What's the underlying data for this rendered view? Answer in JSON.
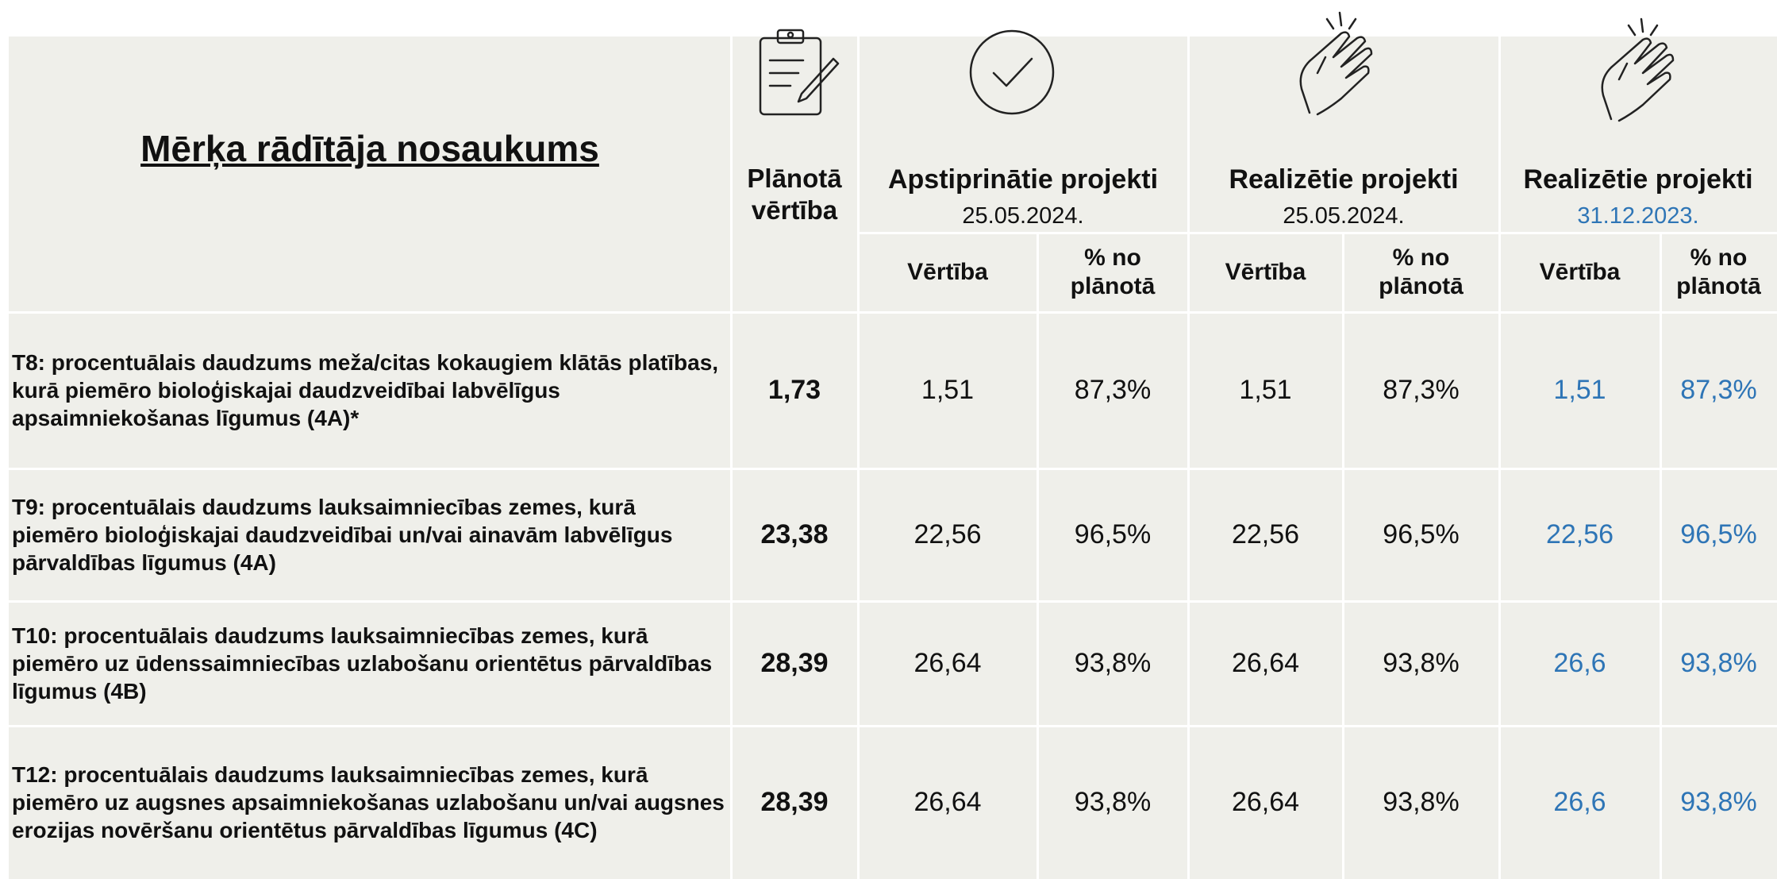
{
  "header": {
    "title": "Mērķa rādītāja nosaukums",
    "planned": "Plānotā vērtība",
    "groups": [
      {
        "title": "Apstiprinātie projekti",
        "date": "25.05.2024."
      },
      {
        "title": "Realizētie projekti",
        "date": "25.05.2024."
      },
      {
        "title": "Realizētie projekti",
        "date": "31.12.2023."
      }
    ],
    "subheaders": [
      "Vērtība",
      "% no plānotā",
      "Vērtība",
      "% no plānotā",
      "Vērtība",
      "% no plānotā"
    ]
  },
  "table": {
    "rows": [
      [
        "T8: procentuālais daudzums meža/citas kokaugiem klātās platības, kurā piemēro bioloģiskajai daudzveidībai labvēlīgus apsaimniekošanas līgumus (4A)*",
        "1,73",
        "1,51",
        "87,3%",
        "1,51",
        "87,3%",
        "1,51",
        "87,3%"
      ],
      [
        "T9: procentuālais daudzums lauksaimniecības zemes, kurā piemēro bioloģiskajai daudzveidībai un/vai ainavām labvēlīgus pārvaldības līgumus (4A)",
        "23,38",
        "22,56",
        "96,5%",
        "22,56",
        "96,5%",
        "22,56",
        "96,5%"
      ],
      [
        "T10: procentuālais daudzums lauksaimniecības zemes, kurā piemēro uz ūdenssaimniecības uzlabošanu orientētus pārvaldības līgumus (4B)",
        "28,39",
        "26,64",
        "93,8%",
        "26,64",
        "93,8%",
        "26,6",
        "93,8%"
      ],
      [
        "T12: procentuālais daudzums lauksaimniecības zemes, kurā piemēro uz augsnes apsaimniekošanas uzlabošanu un/vai augsnes erozijas novēršanu orientētus pārvaldības līgumus (4C)",
        "28,39",
        "26,64",
        "93,8%",
        "26,64",
        "93,8%",
        "26,6",
        "93,8%"
      ]
    ]
  }
}
